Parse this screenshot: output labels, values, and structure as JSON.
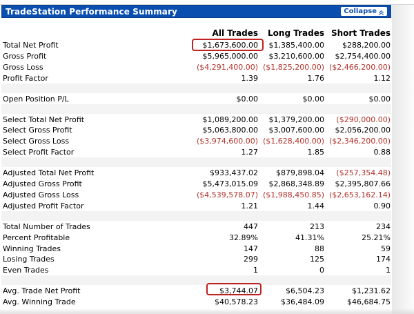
{
  "header": {
    "title": "TradeStation Performance Summary",
    "collapse_label": "Collapse"
  },
  "columns": [
    "All Trades",
    "Long Trades",
    "Short Trades"
  ],
  "groups": [
    {
      "rows": [
        {
          "label": "Total Net Profit",
          "values": [
            "$1,673,600.00",
            "$1,385,400.00",
            "$288,200.00"
          ],
          "neg": [
            false,
            false,
            false
          ]
        },
        {
          "label": "Gross Profit",
          "values": [
            "$5,965,000.00",
            "$3,210,600.00",
            "$2,754,400.00"
          ],
          "neg": [
            false,
            false,
            false
          ]
        },
        {
          "label": "Gross Loss",
          "values": [
            "($4,291,400.00)",
            "($1,825,200.00)",
            "($2,466,200.00)"
          ],
          "neg": [
            true,
            true,
            true
          ]
        },
        {
          "label": "Profit Factor",
          "values": [
            "1.39",
            "1.76",
            "1.12"
          ],
          "neg": [
            false,
            false,
            false
          ]
        }
      ]
    },
    {
      "rows": [
        {
          "label": "Open Position P/L",
          "values": [
            "$0.00",
            "$0.00",
            "$0.00"
          ],
          "neg": [
            false,
            false,
            false
          ]
        }
      ]
    },
    {
      "rows": [
        {
          "label": "Select Total Net Profit",
          "values": [
            "$1,089,200.00",
            "$1,379,200.00",
            "($290,000.00)"
          ],
          "neg": [
            false,
            false,
            true
          ]
        },
        {
          "label": "Select Gross Profit",
          "values": [
            "$5,063,800.00",
            "$3,007,600.00",
            "$2,056,200.00"
          ],
          "neg": [
            false,
            false,
            false
          ]
        },
        {
          "label": "Select Gross Loss",
          "values": [
            "($3,974,600.00)",
            "($1,628,400.00)",
            "($2,346,200.00)"
          ],
          "neg": [
            true,
            true,
            true
          ]
        },
        {
          "label": "Select Profit Factor",
          "values": [
            "1.27",
            "1.85",
            "0.88"
          ],
          "neg": [
            false,
            false,
            false
          ]
        }
      ]
    },
    {
      "rows": [
        {
          "label": "Adjusted Total Net Profit",
          "values": [
            "$933,437.02",
            "$879,898.04",
            "($257,354.48)"
          ],
          "neg": [
            false,
            false,
            true
          ]
        },
        {
          "label": "Adjusted Gross Profit",
          "values": [
            "$5,473,015.09",
            "$2,868,348.89",
            "$2,395,807.66"
          ],
          "neg": [
            false,
            false,
            false
          ]
        },
        {
          "label": "Adjusted Gross Loss",
          "values": [
            "($4,539,578.07)",
            "($1,988,450.85)",
            "($2,653,162.14)"
          ],
          "neg": [
            true,
            true,
            true
          ]
        },
        {
          "label": "Adjusted Profit Factor",
          "values": [
            "1.21",
            "1.44",
            "0.90"
          ],
          "neg": [
            false,
            false,
            false
          ]
        }
      ]
    },
    {
      "rows": [
        {
          "label": "Total Number of Trades",
          "values": [
            "447",
            "213",
            "234"
          ],
          "neg": [
            false,
            false,
            false
          ]
        },
        {
          "label": "Percent Profitable",
          "values": [
            "32.89%",
            "41.31%",
            "25.21%"
          ],
          "neg": [
            false,
            false,
            false
          ]
        },
        {
          "label": "Winning Trades",
          "values": [
            "147",
            "88",
            "59"
          ],
          "neg": [
            false,
            false,
            false
          ]
        },
        {
          "label": "Losing Trades",
          "values": [
            "299",
            "125",
            "174"
          ],
          "neg": [
            false,
            false,
            false
          ]
        },
        {
          "label": "Even Trades",
          "values": [
            "1",
            "0",
            "1"
          ],
          "neg": [
            false,
            false,
            false
          ]
        }
      ]
    },
    {
      "rows": [
        {
          "label": "Avg. Trade Net Profit",
          "values": [
            "$3,744.07",
            "$6,504.23",
            "$1,231.62"
          ],
          "neg": [
            false,
            false,
            false
          ]
        },
        {
          "label": "Avg. Winning Trade",
          "values": [
            "$40,578.23",
            "$36,484.09",
            "$46,684.75"
          ],
          "neg": [
            false,
            false,
            false
          ]
        }
      ]
    }
  ],
  "highlights": [
    "Total Net Profit / All Trades",
    "Avg. Trade Net Profit / All Trades"
  ],
  "colors": {
    "title_bar": "#0a4fb0",
    "negative": "#b3322b",
    "highlight": "#c0201f"
  }
}
